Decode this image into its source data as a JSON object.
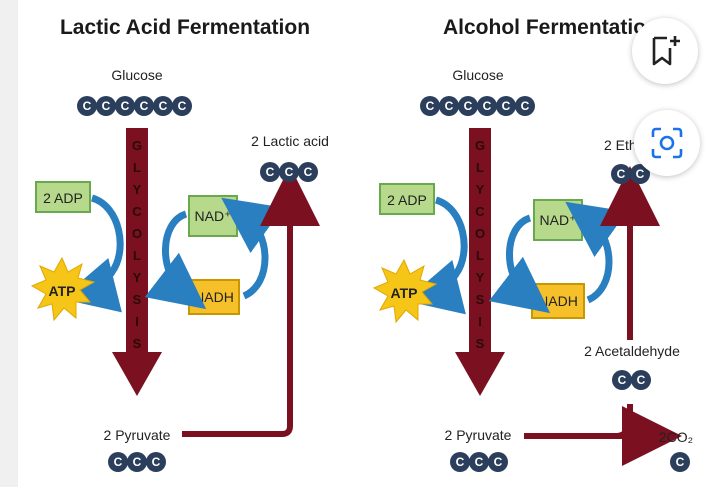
{
  "left_panel": {
    "title": "Lactic Acid Fermentation",
    "glucose_label": "Glucose",
    "glycolysis_letters": [
      "G",
      "L",
      "Y",
      "C",
      "O",
      "L",
      "Y",
      "S",
      "I",
      "S"
    ],
    "adp_label": "2 ADP",
    "atp_label": "ATP",
    "nad_label": "NAD⁺",
    "nadh_label": "NADH",
    "pyruvate_label": "2 Pyruvate",
    "product_label": "2 Lactic acid"
  },
  "right_panel": {
    "title": "Alcohol Fermentatio",
    "glucose_label": "Glucose",
    "glycolysis_letters": [
      "G",
      "L",
      "Y",
      "C",
      "O",
      "L",
      "Y",
      "S",
      "I",
      "S"
    ],
    "adp_label": "2 ADP",
    "atp_label": "ATP",
    "nad_label": "NAD⁺",
    "nadh_label": "NADH",
    "pyruvate_label": "2 Pyruvate",
    "acetaldehyde_label": "2 Acetaldehyde",
    "product_label": "2 Ethan",
    "co2_label": "2CO₂"
  },
  "carbon_letter": "C",
  "actions": {
    "bookmark_icon": "bookmark-plus-icon",
    "lens_icon": "visual-search-icon"
  },
  "colors": {
    "arrow_red": "#7a1020",
    "arrow_blue": "#2a7fc0",
    "carbon_navy": "#2b3f5c",
    "green_box": "#b7d98c",
    "yellow_box": "#f5c02a",
    "atp_star": "#f5c518"
  }
}
